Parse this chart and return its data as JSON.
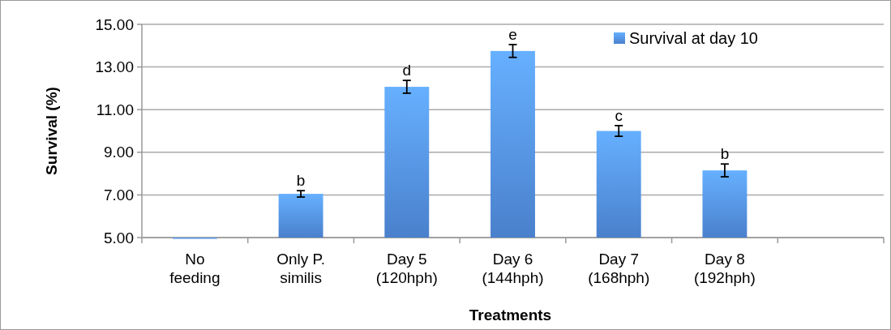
{
  "chart_data": {
    "type": "bar",
    "xlabel": "Treatments",
    "ylabel": "Survival (%)",
    "categories": [
      "No feeding",
      "Only P. similis",
      "Day 5 (120hph)",
      "Day 6 (144hph)",
      "Day 7 (168hph)",
      "Day 8 (192hph)",
      null
    ],
    "series": [
      {
        "name": "Survival at day 10",
        "color": "#4a80cc",
        "values": [
          5.0,
          7.05,
          12.07,
          13.75,
          10.0,
          8.15,
          null
        ],
        "errors": [
          null,
          0.15,
          0.3,
          0.3,
          0.25,
          0.3,
          null
        ]
      }
    ],
    "ylim": [
      5,
      15
    ],
    "yticks": [
      {
        "value": 5,
        "label": "5.00"
      },
      {
        "value": 7,
        "label": "7.00"
      },
      {
        "value": 9,
        "label": "9.00"
      },
      {
        "value": 11,
        "label": "11.00"
      },
      {
        "value": 13,
        "label": "13.00"
      },
      {
        "value": 15,
        "label": "15.00"
      }
    ],
    "grid": "y",
    "legend": "top right",
    "annotations": [
      {
        "text": "b",
        "x": "Only P. similis",
        "y": 7.2
      },
      {
        "text": "d",
        "x": "Day 5 (120hph)",
        "y": 12.37
      },
      {
        "text": "e",
        "x": "Day 6 (144hph)",
        "y": 14.05
      },
      {
        "text": "c",
        "x": "Day 7 (168hph)",
        "y": 10.25
      },
      {
        "text": "b",
        "x": "Day 8 (192hph)",
        "y": 8.45
      }
    ]
  }
}
